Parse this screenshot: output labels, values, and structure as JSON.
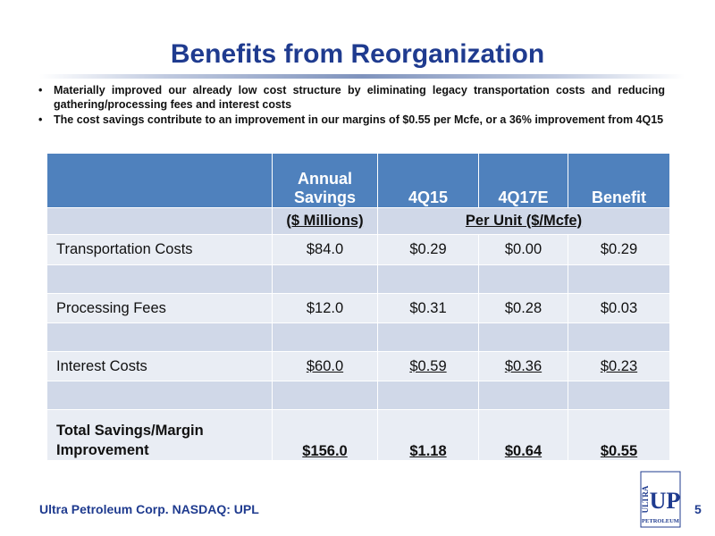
{
  "title": "Benefits from Reorganization",
  "bullets": [
    "Materially improved our already low cost structure by eliminating legacy transportation costs and reducing gathering/processing fees and interest costs",
    "The cost savings contribute to an improvement in our margins of $0.55 per Mcfe, or a 36% improvement from 4Q15"
  ],
  "bullet_glyph": "•",
  "table": {
    "headers": [
      "",
      "Annual Savings",
      "4Q15",
      "4Q17E",
      "Benefit"
    ],
    "units": {
      "savings": "($ Millions)",
      "per_unit": "Per Unit ($/Mcfe)"
    },
    "rows": [
      {
        "label": "Transportation Costs",
        "savings": "$84.0",
        "q4_15": "$0.29",
        "q4_17e": "$0.00",
        "benefit": "$0.29"
      },
      {
        "label": "Processing Fees",
        "savings": "$12.0",
        "q4_15": "$0.31",
        "q4_17e": "$0.28",
        "benefit": "$0.03"
      },
      {
        "label": "Interest Costs",
        "savings": "$60.0",
        "q4_15": "$0.59",
        "q4_17e": "$0.36",
        "benefit": "$0.23"
      }
    ],
    "total": {
      "label_line1": "Total Savings/Margin",
      "label_line2": "Improvement",
      "savings": "$156.0",
      "q4_15": "$1.18",
      "q4_17e": "$0.64",
      "benefit": "$0.55"
    }
  },
  "footer": "Ultra Petroleum Corp. NASDAQ: UPL",
  "page_number": "5",
  "logo": {
    "main": "UP",
    "side": "ULTRA",
    "bottom": "PETROLEUM"
  },
  "colors": {
    "title": "#1f3b8f",
    "header_bg": "#4f81bd",
    "row_light": "#e9edf4",
    "row_dark": "#d0d8e8"
  }
}
